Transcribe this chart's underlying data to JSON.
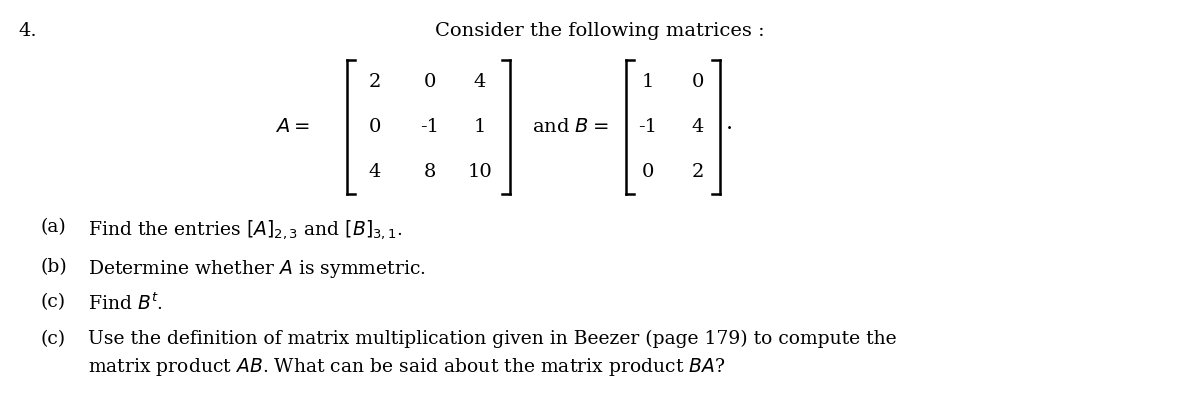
{
  "background_color": "#ffffff",
  "fig_width": 12.0,
  "fig_height": 4.08,
  "dpi": 100,
  "text_color": "#000000",
  "question_number": "4.",
  "title_text": "Consider the following matrices :",
  "matrix_A": [
    [
      2,
      0,
      4
    ],
    [
      0,
      -1,
      1
    ],
    [
      4,
      8,
      10
    ]
  ],
  "matrix_B": [
    [
      1,
      0
    ],
    [
      -1,
      4
    ],
    [
      0,
      2
    ]
  ],
  "items": [
    {
      "label": "(a)",
      "text": "Find the entries $[A]_{2,3}$ and $[B]_{3,1}$."
    },
    {
      "label": "(b)",
      "text": "Determine whether $A$ is symmetric."
    },
    {
      "label": "(c)",
      "text": "Find $B^t$."
    },
    {
      "label": "(c)",
      "text": "Use the definition of matrix multiplication given in Beezer (page 179) to compute the\nmatrix product $AB$. What can be said about the matrix product $BA$?"
    }
  ],
  "fs_main": 14,
  "fs_items": 13.5
}
